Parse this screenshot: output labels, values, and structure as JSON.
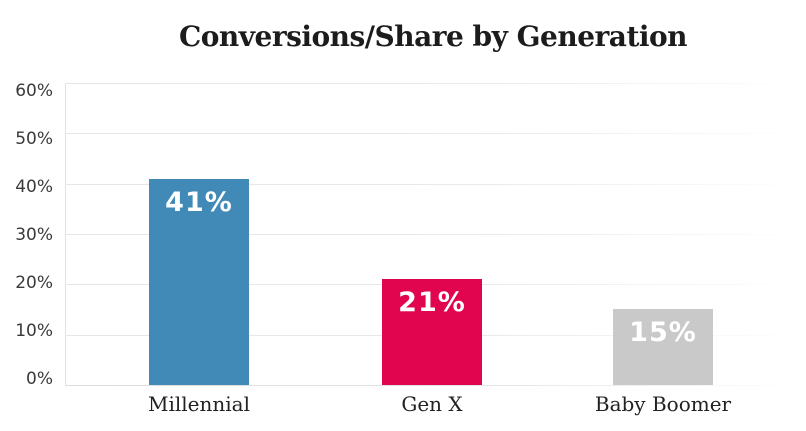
{
  "title": "Conversions/Share by Generation",
  "colors": {
    "millennial_bar": "#4189b6",
    "genx_bar": "#e0054e",
    "boomer_bar": "#c9c9c9",
    "bar_value_text": "#ffffff",
    "title_text": "#1c1c1c",
    "axis_text": "#3a3a3a",
    "gridline": "#e6e6e6"
  },
  "chart_data": {
    "type": "bar",
    "title": "Conversions/Share by Generation",
    "xlabel": "",
    "ylabel": "",
    "categories": [
      "Millennial",
      "Gen X",
      "Baby Boomer"
    ],
    "values": [
      41,
      21,
      15
    ],
    "value_labels": [
      "41%",
      "21%",
      "15%"
    ],
    "bar_colors": [
      "#4189b6",
      "#e0054e",
      "#c9c9c9"
    ],
    "ylim": [
      0,
      60
    ],
    "yticks": [
      {
        "label": "60%",
        "value": 60
      },
      {
        "label": "50%",
        "value": 50
      },
      {
        "label": "40%",
        "value": 40
      },
      {
        "label": "30%",
        "value": 30
      },
      {
        "label": "20%",
        "value": 20
      },
      {
        "label": "10%",
        "value": 10
      },
      {
        "label": "0%",
        "value": 0
      }
    ],
    "grid": true,
    "legend": false
  }
}
